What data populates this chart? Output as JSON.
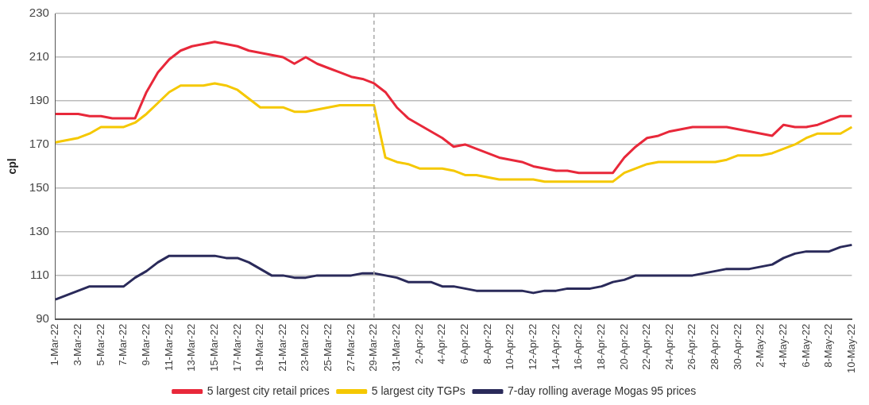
{
  "chart_data": {
    "type": "line",
    "ylabel": "cpl",
    "categories": [
      "1-Mar-22",
      null,
      "3-Mar-22",
      null,
      "5-Mar-22",
      null,
      "7-Mar-22",
      null,
      "9-Mar-22",
      null,
      "11-Mar-22",
      null,
      "13-Mar-22",
      null,
      "15-Mar-22",
      null,
      "17-Mar-22",
      null,
      "19-Mar-22",
      null,
      "21-Mar-22",
      null,
      "23-Mar-22",
      null,
      "25-Mar-22",
      null,
      "27-Mar-22",
      null,
      "29-Mar-22",
      null,
      "31-Mar-22",
      null,
      "2-Apr-22",
      null,
      "4-Apr-22",
      null,
      "6-Apr-22",
      null,
      "8-Apr-22",
      null,
      "10-Apr-22",
      null,
      "12-Apr-22",
      null,
      "14-Apr-22",
      null,
      "16-Apr-22",
      null,
      "18-Apr-22",
      null,
      "20-Apr-22",
      null,
      "22-Apr-22",
      null,
      "24-Apr-22",
      null,
      "26-Apr-22",
      null,
      "28-Apr-22",
      null,
      "30-Apr-22",
      null,
      "2-May-22",
      null,
      "4-May-22",
      null,
      "6-May-22",
      null,
      "8-May-22",
      null,
      "10-May-22"
    ],
    "series": [
      {
        "name": "5 largest city retail prices",
        "color": "#e8283a",
        "values": [
          184,
          184,
          184,
          183,
          183,
          182,
          182,
          182,
          194,
          203,
          209,
          213,
          215,
          216,
          217,
          216,
          215,
          213,
          212,
          211,
          210,
          207,
          210,
          207,
          205,
          203,
          201,
          200,
          198,
          194,
          187,
          182,
          179,
          176,
          173,
          169,
          170,
          168,
          166,
          164,
          163,
          162,
          160,
          159,
          158,
          158,
          157,
          157,
          157,
          157,
          164,
          169,
          173,
          174,
          176,
          177,
          178,
          178,
          178,
          178,
          177,
          176,
          175,
          174,
          179,
          178,
          178,
          179,
          181,
          183,
          183
        ]
      },
      {
        "name": "5 largest city TGPs",
        "color": "#f5c800",
        "values": [
          171,
          172,
          173,
          175,
          178,
          178,
          178,
          180,
          184,
          189,
          194,
          197,
          197,
          197,
          198,
          197,
          195,
          191,
          187,
          187,
          187,
          185,
          185,
          186,
          187,
          188,
          188,
          188,
          188,
          164,
          162,
          161,
          159,
          159,
          159,
          158,
          156,
          156,
          155,
          154,
          154,
          154,
          154,
          153,
          153,
          153,
          153,
          153,
          153,
          153,
          157,
          159,
          161,
          162,
          162,
          162,
          162,
          162,
          162,
          163,
          165,
          165,
          165,
          166,
          168,
          170,
          173,
          175,
          175,
          175,
          178
        ]
      },
      {
        "name": "7-day rolling average Mogas 95 prices",
        "color": "#2a2a5a",
        "values": [
          99,
          101,
          103,
          105,
          105,
          105,
          105,
          109,
          112,
          116,
          119,
          119,
          119,
          119,
          119,
          118,
          118,
          116,
          113,
          110,
          110,
          109,
          109,
          110,
          110,
          110,
          110,
          111,
          111,
          110,
          109,
          107,
          107,
          107,
          105,
          105,
          104,
          103,
          103,
          103,
          103,
          103,
          102,
          103,
          103,
          104,
          104,
          104,
          105,
          107,
          108,
          110,
          110,
          110,
          110,
          110,
          110,
          111,
          112,
          113,
          113,
          113,
          114,
          115,
          118,
          120,
          121,
          121,
          121,
          123,
          124
        ]
      }
    ],
    "ylim": [
      90,
      230
    ],
    "yticks": [
      90,
      110,
      130,
      150,
      170,
      190,
      210,
      230
    ],
    "grid": "y",
    "legend": "bottom",
    "marker": "none",
    "line_style": "solid",
    "ref_lines": [
      {
        "axis": "x",
        "value": "29-Mar-22",
        "color": "#aaaaaa",
        "line_style": "dashed"
      }
    ]
  }
}
